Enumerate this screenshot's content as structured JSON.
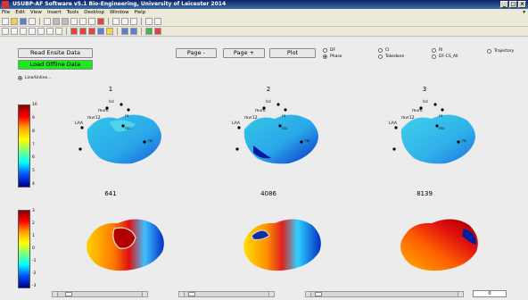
{
  "window": {
    "title": "USUBP-AF Software v5.1   Bio-Engineering, University of Leicester  2014"
  },
  "menu": [
    "File",
    "Edit",
    "View",
    "Insert",
    "Tools",
    "Desktop",
    "Window",
    "Help"
  ],
  "buttons": {
    "read_ensite": "Read Ensite Data",
    "load_offline": "Load Offline Data",
    "page_minus": "Page -",
    "page_plus": "Page +",
    "plot": "Plot"
  },
  "radios": {
    "df": "DF",
    "phase": "Phase",
    "ci": "CI",
    "tokedone": "Tokedone",
    "ri": "RI",
    "df_cs_all": "DF-CS_All",
    "trajectory": "Trajectory",
    "line_unline": "Line/Unline..."
  },
  "top_row": {
    "titles": [
      "1",
      "2",
      "3"
    ],
    "colorbar_ticks": [
      "10",
      "9",
      "8",
      "7",
      "6",
      "5",
      "4"
    ],
    "labels": [
      "LAA",
      "mvr12",
      "mvr9",
      "mvr6",
      "mvr3",
      "lsc",
      "rs",
      "rsc",
      "ra",
      "f"
    ]
  },
  "bottom_row": {
    "titles": [
      "641",
      "4086",
      "8139"
    ],
    "colorbar_ticks": [
      "3",
      "2",
      "1",
      "0",
      "-1",
      "-2",
      "-3"
    ]
  },
  "footer": {
    "count": "0"
  }
}
